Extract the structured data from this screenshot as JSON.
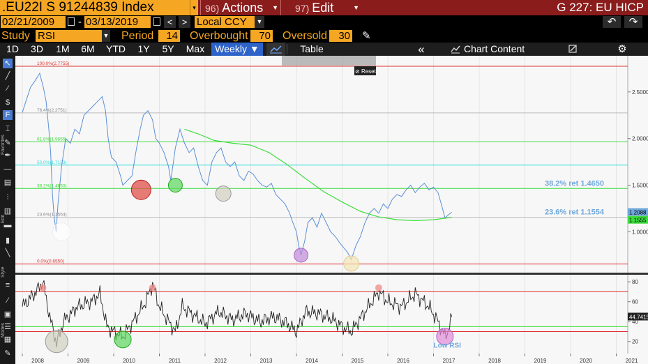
{
  "title_bar": {
    "security": ".EU22I S 91244839 Index",
    "actions": {
      "num": "96)",
      "label": "Actions"
    },
    "edit": {
      "num": "97)",
      "label": "Edit"
    },
    "screen_title": "G 227: EU HICP"
  },
  "range_bar": {
    "start_date": "02/21/2009",
    "end_date": "03/13/2019",
    "prev": "<",
    "next": ">",
    "currency": "Local CCY",
    "undo": "↶",
    "redo": "↷"
  },
  "study_bar": {
    "study_label": "Study",
    "study_value": "RSI",
    "period_label": "Period",
    "period_value": "14",
    "overbought_label": "Overbought",
    "overbought_value": "70",
    "oversold_label": "Oversold",
    "oversold_value": "30"
  },
  "toolbar": {
    "ranges": [
      "1D",
      "3D",
      "1M",
      "6M",
      "YTD",
      "1Y",
      "5Y",
      "Max"
    ],
    "frequency": "Weekly ▼",
    "table": "Table",
    "collapse": "«",
    "chart_content": "Chart Content",
    "edit_icon": "pencil-icon",
    "settings_icon": "gear-icon"
  },
  "side_labels": {
    "favorites": "Favorites",
    "edit": "Edit",
    "style": "Style",
    "modes": "Modes"
  },
  "popover": {
    "reset": "Reset"
  },
  "chart_data": [
    {
      "type": "line",
      "title": "",
      "series": [
        {
          "name": "",
          "color": "#5b8fd6"
        },
        {
          "name": "",
          "color": "#3ddc3d"
        }
      ],
      "x_ticks": [
        "2008",
        "2009",
        "2010",
        "2011",
        "2012",
        "2013",
        "2014",
        "2015",
        "2016",
        "2017",
        "2018",
        "2019",
        "2020",
        "2021"
      ],
      "y_ticks": [
        "2.5000",
        "2.0000",
        "1.5000",
        "1.0000"
      ],
      "last_value": "1.2088",
      "ma_value": "1.1555",
      "fib_levels": [
        {
          "label": "100.0%(2.7755)",
          "value": 2.7755,
          "color": "#e03030"
        },
        {
          "label": "76.4%(2.2751)",
          "value": 2.2751,
          "color": "#bbbbbb"
        },
        {
          "label": "61.8%(1.9655)",
          "value": 1.9655,
          "color": "#3ddc3d"
        },
        {
          "label": "50.0%(1.7153)",
          "value": 1.7153,
          "color": "#33dddd"
        },
        {
          "label": "38.2%(1.4650)",
          "value": 1.465,
          "color": "#3ddc3d"
        },
        {
          "label": "23.6%(1.1554)",
          "value": 1.1554,
          "color": "#bbbbbb"
        },
        {
          "label": "0.0%(0.6550)",
          "value": 0.655,
          "color": "#e03030"
        }
      ],
      "annotations": [
        "38.2% ret 1.4650",
        "23.6% ret 1.1554"
      ],
      "ylim": [
        0.6,
        2.85
      ]
    },
    {
      "type": "line",
      "title": "",
      "series": [
        {
          "name": "",
          "color": "#222222"
        }
      ],
      "y_ticks": [
        "80",
        "60",
        "40",
        "20"
      ],
      "last_value": "44.7415",
      "overbought": 70,
      "oversold": 30,
      "annotation": "Low RSI",
      "ylim": [
        10,
        85
      ]
    }
  ]
}
